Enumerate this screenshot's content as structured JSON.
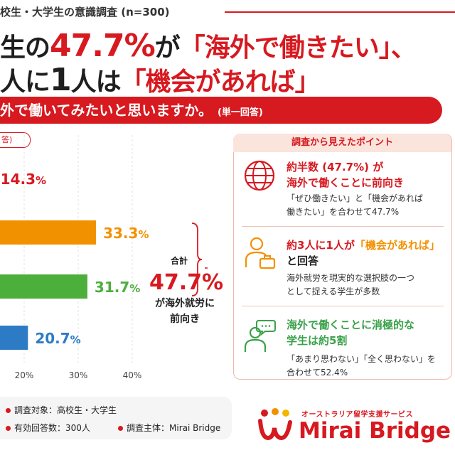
{
  "header": {
    "survey_title": "校生・大学生の意識調査 (n=300)",
    "line1_a": "生の",
    "line1_pct": "47.7%",
    "line1_b": "が",
    "line1_c": "「海外で働きたい」、",
    "line2_a": "人に",
    "line2_num": "1",
    "line2_b": "人は",
    "line2_c": "「機会があれば」"
  },
  "question": {
    "text": "外で働いてみたいと思いますか。",
    "note": "(単一回答)"
  },
  "legend_pill": "答)",
  "chart_data": {
    "type": "bar",
    "orientation": "horizontal",
    "values": [
      14.3,
      33.3,
      31.7,
      20.7
    ],
    "value_labels": [
      "14.3%",
      "33.3%",
      "31.7%",
      "20.7%"
    ],
    "colors": [
      "#d71920",
      "#f29100",
      "#4caf3b",
      "#2e7bc5"
    ],
    "label_colors": [
      "#d71920",
      "#f29100",
      "#4caf3b",
      "#2e7bc5"
    ],
    "xlim": [
      0,
      40
    ],
    "xticks": [
      20,
      30,
      40
    ],
    "xtick_labels": [
      "20%",
      "30%",
      "40%"
    ],
    "grid": true,
    "sum_label": "合計",
    "sum_value": "47.7%",
    "sum_caption_1": "が海外就労に",
    "sum_caption_2": "前向き"
  },
  "points": {
    "heading": "調査から見えたポイント",
    "items": [
      {
        "icon": "globe-icon",
        "title_1": "約半数 (47.7%) が",
        "title_2": "海外で働くことに前向き",
        "desc_1": "「ぜひ働きたい」と「機会があれば",
        "desc_2": "働きたい」を合わせて47.7%"
      },
      {
        "icon": "person-briefcase-icon",
        "title_a": "約3人に1人が",
        "title_b": "「機会があれば」",
        "title_c": "と回答",
        "desc_1": "海外就労を現実的な選択肢の一つ",
        "desc_2": "として捉える学生が多数"
      },
      {
        "icon": "person-speech-icon",
        "title_1": "海外で働くことに消極的な",
        "title_2": "学生は約5割",
        "desc_1": "「あまり思わない」「全く思わない」を",
        "desc_2": "合わせて52.4%"
      }
    ]
  },
  "footer": {
    "target": "調査対象：高校生・大学生",
    "responses": "有効回答数：300人",
    "sponsor": "調査主体：Mirai Bridge"
  },
  "brand": {
    "subtitle": "オーストラリア留学支援サービス",
    "name": "Mirai Bridge",
    "color": "#d71920"
  }
}
